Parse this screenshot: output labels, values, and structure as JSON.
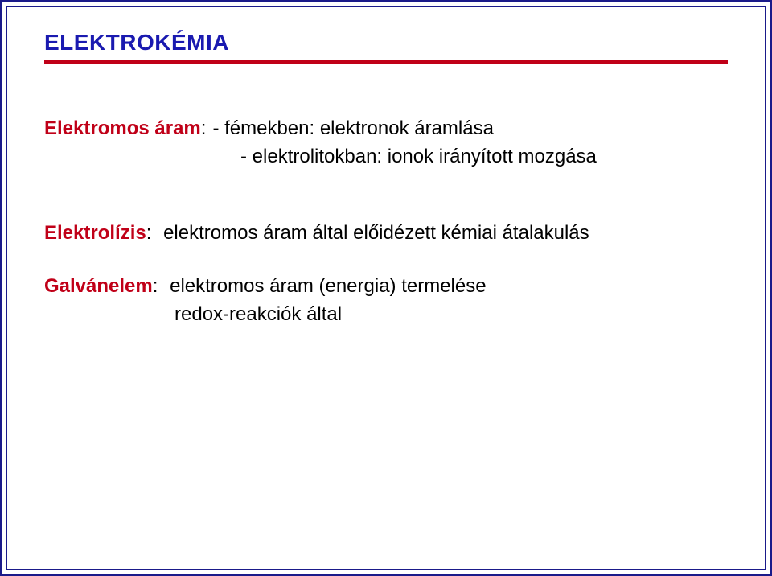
{
  "colors": {
    "frame": "#1a1a8a",
    "title": "#1a1ab0",
    "rule": "#c00018",
    "accent": "#c00018",
    "text": "#000000",
    "background": "#ffffff"
  },
  "typography": {
    "title_fontsize": 28,
    "body_fontsize": 24,
    "font_family": "Arial"
  },
  "title": "ELEKTROKÉMIA",
  "line1": {
    "label": "Elektromos áram",
    "label_suffix": ":",
    "text": "- fémekben: elektronok áramlása"
  },
  "line2": {
    "text": "- elektrolitokban: ionok irányított mozgása"
  },
  "para1": {
    "label": "Elektrolízis",
    "label_suffix": ":",
    "text": " elektromos áram által előidézett kémiai átalakulás"
  },
  "para2": {
    "label": "Galvánelem",
    "label_suffix": ":",
    "text": " elektromos áram (energia) termelése",
    "line2": "redox-reakciók által"
  }
}
